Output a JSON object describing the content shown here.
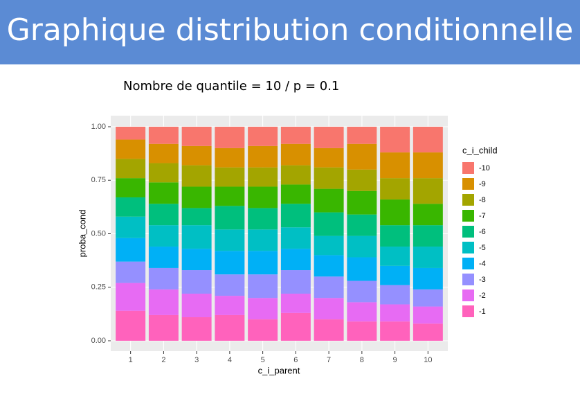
{
  "chart_data": {
    "type": "stacked_bar",
    "title": "Graphique distribution conditionnelle",
    "subtitle": "Nombre de quantile  =  10 / p  = 0.1",
    "x_label": "c_i_parent",
    "y_label": "proba_cond",
    "legend_title": "c_i_child",
    "legend_position": "right",
    "grid": true,
    "categories": [
      "1",
      "2",
      "3",
      "4",
      "5",
      "6",
      "7",
      "8",
      "9",
      "10"
    ],
    "ylim": [
      0,
      1
    ],
    "yticks": [
      {
        "value": 0,
        "label": "0.00"
      },
      {
        "value": 0.25,
        "label": "0.25"
      },
      {
        "value": 0.5,
        "label": "0.50"
      },
      {
        "value": 0.75,
        "label": "0.75"
      },
      {
        "value": 1,
        "label": "1.00"
      }
    ],
    "series": [
      {
        "name": "-1",
        "color": "#FF62BC",
        "values": [
          0.14,
          0.12,
          0.11,
          0.12,
          0.1,
          0.13,
          0.1,
          0.09,
          0.09,
          0.08
        ]
      },
      {
        "name": "-2",
        "color": "#E76BF3",
        "values": [
          0.13,
          0.12,
          0.11,
          0.09,
          0.1,
          0.09,
          0.1,
          0.09,
          0.08,
          0.08
        ]
      },
      {
        "name": "-3",
        "color": "#9590FF",
        "values": [
          0.1,
          0.1,
          0.11,
          0.1,
          0.11,
          0.11,
          0.1,
          0.1,
          0.09,
          0.08
        ]
      },
      {
        "name": "-4",
        "color": "#00B0F6",
        "values": [
          0.11,
          0.1,
          0.1,
          0.11,
          0.11,
          0.1,
          0.1,
          0.11,
          0.09,
          0.1
        ]
      },
      {
        "name": "-5",
        "color": "#00BFC4",
        "values": [
          0.1,
          0.1,
          0.11,
          0.1,
          0.1,
          0.1,
          0.09,
          0.1,
          0.09,
          0.1
        ]
      },
      {
        "name": "-6",
        "color": "#00BF7D",
        "values": [
          0.09,
          0.1,
          0.08,
          0.11,
          0.1,
          0.11,
          0.11,
          0.1,
          0.1,
          0.1
        ]
      },
      {
        "name": "-7",
        "color": "#39B600",
        "values": [
          0.09,
          0.1,
          0.1,
          0.09,
          0.1,
          0.09,
          0.11,
          0.11,
          0.12,
          0.1
        ]
      },
      {
        "name": "-8",
        "color": "#A3A500",
        "values": [
          0.09,
          0.09,
          0.1,
          0.09,
          0.09,
          0.09,
          0.1,
          0.1,
          0.1,
          0.12
        ]
      },
      {
        "name": "-9",
        "color": "#D89000",
        "values": [
          0.09,
          0.09,
          0.09,
          0.09,
          0.1,
          0.1,
          0.09,
          0.12,
          0.12,
          0.12
        ]
      },
      {
        "name": "-10",
        "color": "#F8766D",
        "values": [
          0.06,
          0.08,
          0.09,
          0.1,
          0.09,
          0.08,
          0.1,
          0.08,
          0.12,
          0.12
        ]
      }
    ]
  }
}
